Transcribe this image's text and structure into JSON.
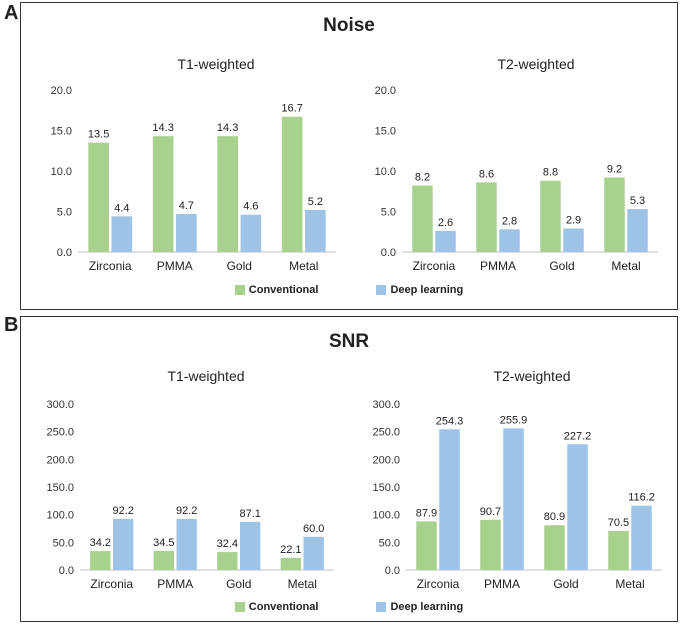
{
  "panels": [
    {
      "letter": "A",
      "title": "Noise"
    },
    {
      "letter": "B",
      "title": "SNR"
    }
  ],
  "legend": {
    "conventional": "Conventional",
    "deep": "Deep learning",
    "colors": {
      "conventional": "#a9d18e",
      "deep": "#9dc3e6"
    }
  },
  "chart_data": [
    {
      "type": "bar",
      "title": "T1-weighted",
      "categories": [
        "Zirconia",
        "PMMA",
        "Gold",
        "Metal"
      ],
      "series": [
        {
          "name": "Conventional",
          "values": [
            13.5,
            14.3,
            14.3,
            16.7
          ],
          "labels": [
            "13.5",
            "14.3",
            "14.3",
            "16.7"
          ]
        },
        {
          "name": "Deep learning",
          "values": [
            4.4,
            4.7,
            4.6,
            5.2
          ],
          "labels": [
            "4.4",
            "4.7",
            "4.6",
            "5.2"
          ]
        }
      ],
      "ylim": [
        0,
        20
      ],
      "yticks": [
        "0.0",
        "5.0",
        "10.0",
        "15.0",
        "20.0"
      ]
    },
    {
      "type": "bar",
      "title": "T2-weighted",
      "categories": [
        "Zirconia",
        "PMMA",
        "Gold",
        "Metal"
      ],
      "series": [
        {
          "name": "Conventional",
          "values": [
            8.2,
            8.6,
            8.8,
            9.2
          ],
          "labels": [
            "8.2",
            "8.6",
            "8.8",
            "9.2"
          ]
        },
        {
          "name": "Deep learning",
          "values": [
            2.6,
            2.8,
            2.9,
            5.3
          ],
          "labels": [
            "2.6",
            "2.8",
            "2.9",
            "5.3"
          ]
        }
      ],
      "ylim": [
        0,
        20
      ],
      "yticks": [
        "0.0",
        "5.0",
        "10.0",
        "15.0",
        "20.0"
      ]
    },
    {
      "type": "bar",
      "title": "T1-weighted",
      "categories": [
        "Zirconia",
        "PMMA",
        "Gold",
        "Metal"
      ],
      "series": [
        {
          "name": "Conventional",
          "values": [
            34.2,
            34.5,
            32.4,
            22.1
          ],
          "labels": [
            "34.2",
            "34.5",
            "32.4",
            "22.1"
          ]
        },
        {
          "name": "Deep learning",
          "values": [
            92.2,
            92.2,
            87.1,
            60.0
          ],
          "labels": [
            "92.2",
            "92.2",
            "87.1",
            "60.0"
          ]
        }
      ],
      "ylim": [
        0,
        300
      ],
      "yticks": [
        "0.0",
        "50.0",
        "100.0",
        "150.0",
        "200.0",
        "250.0",
        "300.0"
      ]
    },
    {
      "type": "bar",
      "title": "T2-weighted",
      "categories": [
        "Zirconia",
        "PMMA",
        "Gold",
        "Metal"
      ],
      "series": [
        {
          "name": "Conventional",
          "values": [
            87.9,
            90.7,
            80.9,
            70.5
          ],
          "labels": [
            "87.9",
            "90.7",
            "80.9",
            "70.5"
          ]
        },
        {
          "name": "Deep learning",
          "values": [
            254.3,
            255.9,
            227.2,
            116.2
          ],
          "labels": [
            "254.3",
            "255.9",
            "227.2",
            "116.2"
          ]
        }
      ],
      "ylim": [
        0,
        300
      ],
      "yticks": [
        "0.0",
        "50.0",
        "100.0",
        "150.0",
        "200.0",
        "250.0",
        "300.0"
      ]
    }
  ]
}
